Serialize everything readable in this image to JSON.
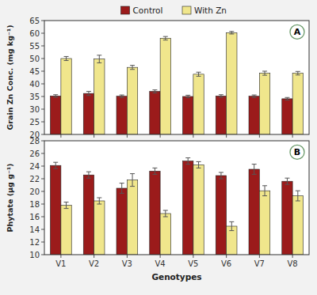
{
  "chart_data": [
    {
      "type": "bar",
      "title": "A",
      "y_label": "Grain Zn Conc. (mg kg⁻¹)",
      "categories": [
        "V1",
        "V2",
        "V3",
        "V4",
        "V5",
        "V6",
        "V7",
        "V8"
      ],
      "series": [
        {
          "name": "Control",
          "color": "#9B1B1B",
          "values": [
            35.2,
            36.2,
            35.1,
            37.0,
            35.0,
            35.2,
            35.1,
            34.1
          ],
          "errors": [
            0.5,
            0.8,
            0.5,
            0.6,
            0.5,
            0.5,
            0.5,
            0.5
          ]
        },
        {
          "name": "With Zn",
          "color": "#F0E68C",
          "values": [
            50.0,
            49.8,
            46.5,
            58.0,
            43.8,
            60.2,
            44.2,
            44.2
          ],
          "errors": [
            0.8,
            1.5,
            0.8,
            0.7,
            0.8,
            0.5,
            0.8,
            0.7
          ]
        }
      ],
      "ylim": [
        20,
        65
      ],
      "yticks": [
        20,
        25,
        30,
        35,
        40,
        45,
        50,
        55,
        60,
        65
      ],
      "legend": "top",
      "tick_labels": "y"
    },
    {
      "type": "bar",
      "title": "B",
      "y_label": "Phytate (μg g⁻¹)",
      "x_label": "Genotypes",
      "categories": [
        "V1",
        "V2",
        "V3",
        "V4",
        "V5",
        "V6",
        "V7",
        "V8"
      ],
      "series": [
        {
          "name": "Control",
          "color": "#9B1B1B",
          "values": [
            24.1,
            22.6,
            20.5,
            23.2,
            24.8,
            22.5,
            23.5,
            21.6
          ],
          "errors": [
            0.5,
            0.5,
            0.8,
            0.5,
            0.5,
            0.5,
            0.8,
            0.5
          ]
        },
        {
          "name": "With Zn",
          "color": "#F0E68C",
          "values": [
            17.8,
            18.5,
            21.8,
            16.5,
            24.2,
            14.5,
            20.1,
            19.3
          ],
          "errors": [
            0.5,
            0.5,
            1.0,
            0.5,
            0.5,
            0.7,
            0.8,
            0.8
          ]
        }
      ],
      "ylim": [
        10,
        28
      ],
      "yticks": [
        10,
        12,
        14,
        16,
        18,
        20,
        22,
        24,
        26,
        28
      ]
    }
  ]
}
